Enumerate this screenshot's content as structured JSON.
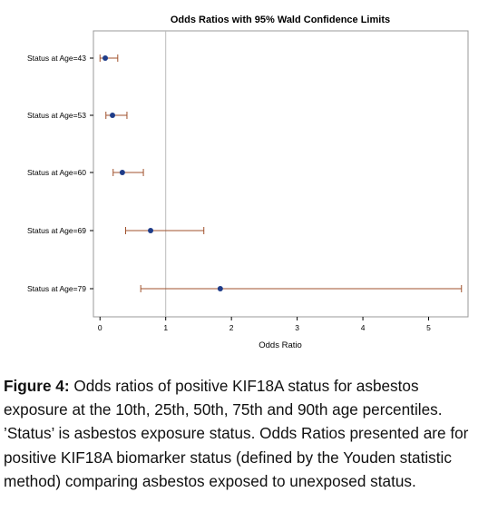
{
  "chart_data": {
    "type": "scatter",
    "title": "Odds Ratios with 95% Wald Confidence Limits",
    "xlabel": "Odds Ratio",
    "ylabel": "",
    "xlim": [
      -0.1,
      5.6
    ],
    "xticks": [
      "0",
      "1",
      "2",
      "3",
      "4",
      "5"
    ],
    "reference_line": 1,
    "grid": false,
    "categories": [
      "Status at Age=43",
      "Status at Age=53",
      "Status at Age=60",
      "Status at Age=69",
      "Status at Age=79"
    ],
    "points": [
      {
        "category": "Status at Age=43",
        "estimate": 0.08,
        "lower": 0.0,
        "upper": 0.27
      },
      {
        "category": "Status at Age=53",
        "estimate": 0.19,
        "lower": 0.09,
        "upper": 0.41
      },
      {
        "category": "Status at Age=60",
        "estimate": 0.34,
        "lower": 0.2,
        "upper": 0.66
      },
      {
        "category": "Status at Age=69",
        "estimate": 0.77,
        "lower": 0.39,
        "upper": 1.58
      },
      {
        "category": "Status at Age=79",
        "estimate": 1.83,
        "lower": 0.62,
        "upper": 5.5
      }
    ],
    "colors": {
      "point": "#1f3c88",
      "ci": "#a0522d",
      "reference": "#bbbbbb",
      "frame": "#999999"
    }
  },
  "caption": {
    "label": "Figure 4:",
    "text": "Odds ratios of positive KIF18A status for asbestos exposure at the 10th, 25th, 50th, 75th and 90th age percentiles. ’Status’ is asbestos exposure status. Odds Ratios presented are for positive KIF18A biomarker status (defined by the Youden statistic method) comparing asbestos exposed to unexposed status."
  }
}
